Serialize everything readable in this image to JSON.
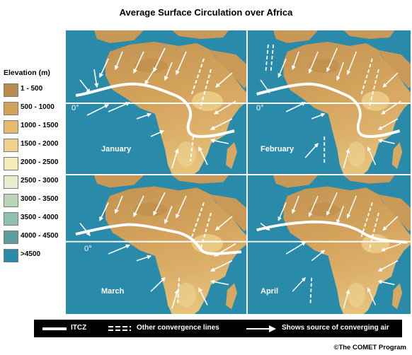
{
  "title": "Average Surface Circulation over Africa",
  "legend": {
    "title": "Elevation (m)",
    "items": [
      {
        "label": "1 - 500",
        "color": "#b88a4c"
      },
      {
        "label": "500 - 1000",
        "color": "#d3a158"
      },
      {
        "label": "1000 - 1500",
        "color": "#e3bb6e"
      },
      {
        "label": "1500 - 2000",
        "color": "#efd08e"
      },
      {
        "label": "2000 - 2500",
        "color": "#f4ebb8"
      },
      {
        "label": "2500 - 3000",
        "color": "#e6eecb"
      },
      {
        "label": "3000 - 3500",
        "color": "#b8d6b5"
      },
      {
        "label": "3500 - 4000",
        "color": "#8fc0ad"
      },
      {
        "label": "4000 - 4500",
        "color": "#5d9e9d"
      },
      {
        "label": ">4500",
        "color": "#2a8aa9"
      }
    ]
  },
  "panels": {
    "january": {
      "month": "January",
      "equator": "0°"
    },
    "february": {
      "month": "February",
      "equator": "0°"
    },
    "march": {
      "month": "March",
      "equator": "0°"
    },
    "april": {
      "month": "April",
      "equator": ""
    }
  },
  "key": {
    "itcz": "ITCZ",
    "other": "Other convergence lines",
    "source": "Shows source of converging air"
  },
  "credit": "©The COMET Program"
}
